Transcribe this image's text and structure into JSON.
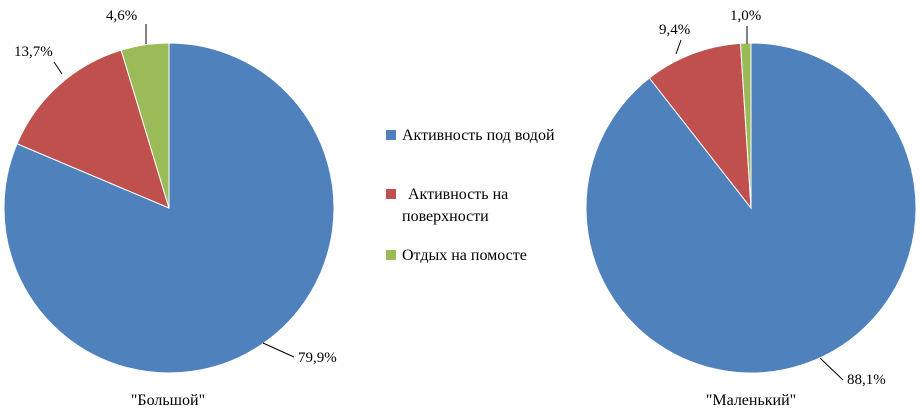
{
  "chart_data": [
    {
      "type": "pie",
      "title": "\"Большой\"",
      "categories": [
        "Активность под водой",
        "Активность на поверхности",
        "Отдых на помосте"
      ],
      "values": [
        79.9,
        13.7,
        4.6
      ],
      "labels": [
        "79,9%",
        "13,7%",
        "4,6%"
      ],
      "colors": [
        "#4f81bd",
        "#c0504d",
        "#9bbb59"
      ],
      "legend_position": "right"
    },
    {
      "type": "pie",
      "title": "\"Маленький\"",
      "categories": [
        "Активность под водой",
        "Активность на поверхности",
        "Отдых на помосте"
      ],
      "values": [
        88.1,
        9.4,
        1.0
      ],
      "labels": [
        "88,1%",
        "9,4%",
        "1,0%"
      ],
      "colors": [
        "#4f81bd",
        "#c0504d",
        "#9bbb59"
      ],
      "legend_position": "right"
    }
  ],
  "legend": {
    "items": [
      {
        "lines": [
          "Активность под водой"
        ],
        "color": "#4f81bd"
      },
      {
        "lines": [
          "Активность на",
          "поверхности"
        ],
        "color": "#c0504d"
      },
      {
        "lines": [
          "Отдых на помосте"
        ],
        "color": "#9bbb59"
      }
    ]
  }
}
